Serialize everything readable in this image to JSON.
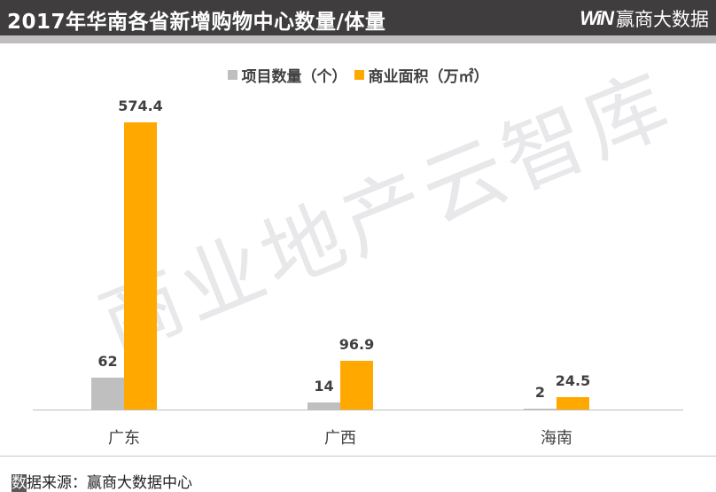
{
  "header": {
    "title": "2017年华南各省新增购物中心数量/体量",
    "brand_logo": "WiN",
    "brand_name": "赢商大数据"
  },
  "colors": {
    "header_bg": "#3f3d3e",
    "stripe": "#bfbdbe",
    "series_count": "#bfbfbf",
    "series_area": "#ffa800",
    "text": "#404040"
  },
  "watermark": "商业地产云智库",
  "footer": {
    "source_first_char": "数",
    "source_rest": "据来源：赢商大数据中心"
  },
  "chart_data": {
    "type": "bar",
    "title": "2017年华南各省新增购物中心数量/体量",
    "categories": [
      "广东",
      "广西",
      "海南"
    ],
    "series": [
      {
        "name": "项目数量（个）",
        "color": "#bfbfbf",
        "values": [
          62,
          14,
          2
        ]
      },
      {
        "name": "商业面积（万㎡）",
        "color": "#ffa800",
        "values": [
          574.4,
          96.9,
          24.5
        ]
      }
    ],
    "value_labels": {
      "count": [
        "62",
        "14",
        "2"
      ],
      "area": [
        "574.4",
        "96.9",
        "24.5"
      ]
    },
    "xlabel": "",
    "ylabel": "",
    "legend_position": "top",
    "grid": false,
    "data_labels": true
  }
}
